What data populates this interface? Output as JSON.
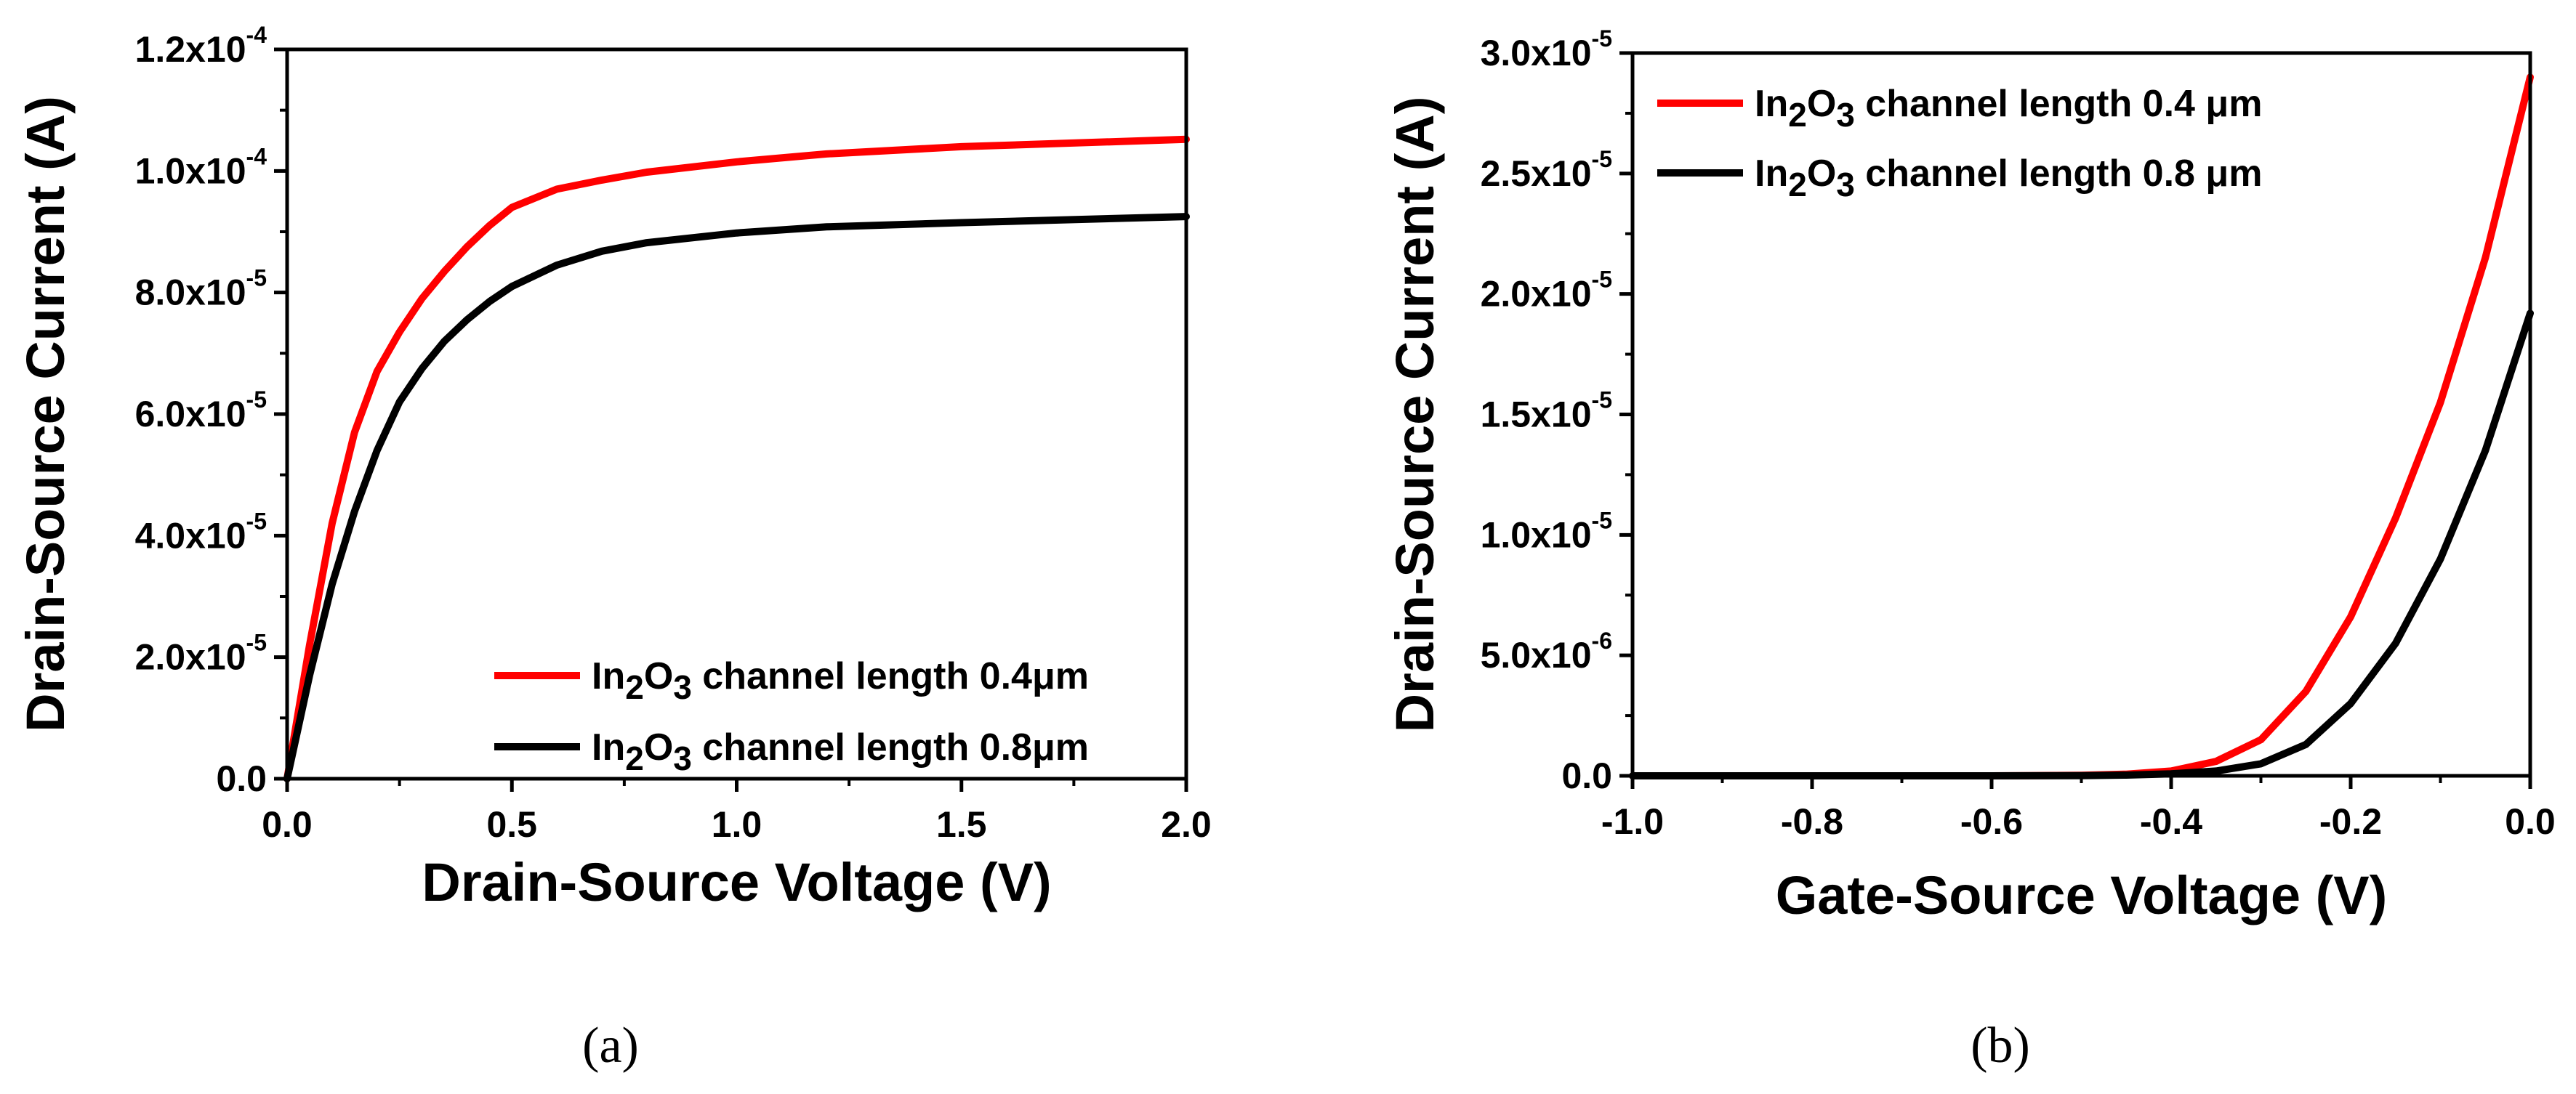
{
  "chart_data": [
    {
      "type": "line",
      "panel": "a",
      "panel_label": "(a)",
      "xlabel": "Drain-Source Voltage (V)",
      "ylabel": "Drain-Source Current (A)",
      "xlim": [
        0,
        2.0
      ],
      "ylim": [
        0,
        0.00012
      ],
      "x_ticks": [
        0.0,
        0.5,
        1.0,
        1.5,
        2.0
      ],
      "x_tick_labels": [
        "0.0",
        "0.5",
        "1.0",
        "1.5",
        "2.0"
      ],
      "y_ticks": [
        0,
        2e-05,
        4e-05,
        6e-05,
        8e-05,
        0.0001,
        0.00012
      ],
      "y_tick_labels": [
        {
          "mantissa": "0.0",
          "exponent": ""
        },
        {
          "mantissa": "2.0x10",
          "exponent": "-5"
        },
        {
          "mantissa": "4.0x10",
          "exponent": "-5"
        },
        {
          "mantissa": "6.0x10",
          "exponent": "-5"
        },
        {
          "mantissa": "8.0x10",
          "exponent": "-5"
        },
        {
          "mantissa": "1.0x10",
          "exponent": "-4"
        },
        {
          "mantissa": "1.2x10",
          "exponent": "-4"
        }
      ],
      "legend_position": "bottom-right",
      "series": [
        {
          "name": "In2O3 channel length 0.4μm",
          "legend": {
            "pre": "In",
            "sub1": "2",
            "mid": "O",
            "sub2": "3",
            "post": " channel length 0.4μm"
          },
          "color": "#ff0000",
          "x": [
            0,
            0.05,
            0.1,
            0.15,
            0.2,
            0.25,
            0.3,
            0.35,
            0.4,
            0.45,
            0.5,
            0.6,
            0.7,
            0.8,
            1.0,
            1.2,
            1.5,
            2.0
          ],
          "y": [
            0,
            2.2e-05,
            4.2e-05,
            5.7e-05,
            6.7e-05,
            7.35e-05,
            7.9e-05,
            8.35e-05,
            8.75e-05,
            9.1e-05,
            9.4e-05,
            9.7e-05,
            9.85e-05,
            9.98e-05,
            0.0001015,
            0.0001028,
            0.000104,
            0.0001052
          ]
        },
        {
          "name": "In2O3 channel length 0.8μm",
          "legend": {
            "pre": "In",
            "sub1": "2",
            "mid": "O",
            "sub2": "3",
            "post": " channel length 0.8μm"
          },
          "color": "#000000",
          "x": [
            0,
            0.05,
            0.1,
            0.15,
            0.2,
            0.25,
            0.3,
            0.35,
            0.4,
            0.45,
            0.5,
            0.6,
            0.7,
            0.8,
            1.0,
            1.2,
            1.5,
            2.0
          ],
          "y": [
            0,
            1.7e-05,
            3.2e-05,
            4.4e-05,
            5.4e-05,
            6.2e-05,
            6.75e-05,
            7.2e-05,
            7.55e-05,
            7.85e-05,
            8.1e-05,
            8.45e-05,
            8.68e-05,
            8.82e-05,
            8.98e-05,
            9.08e-05,
            9.15e-05,
            9.25e-05
          ]
        }
      ]
    },
    {
      "type": "line",
      "panel": "b",
      "panel_label": "(b)",
      "xlabel": "Gate-Source Voltage (V)",
      "ylabel": "Drain-Source Current (A)",
      "xlim": [
        -1.0,
        0.0
      ],
      "ylim": [
        0,
        3e-05
      ],
      "x_ticks": [
        -1.0,
        -0.8,
        -0.6,
        -0.4,
        -0.2,
        0.0
      ],
      "x_tick_labels": [
        "-1.0",
        "-0.8",
        "-0.6",
        "-0.4",
        "-0.2",
        "0.0"
      ],
      "y_ticks": [
        0,
        5e-06,
        1e-05,
        1.5e-05,
        2e-05,
        2.5e-05,
        3e-05
      ],
      "y_tick_labels": [
        {
          "mantissa": "0.0",
          "exponent": ""
        },
        {
          "mantissa": "5.0x10",
          "exponent": "-6"
        },
        {
          "mantissa": "1.0x10",
          "exponent": "-5"
        },
        {
          "mantissa": "1.5x10",
          "exponent": "-5"
        },
        {
          "mantissa": "2.0x10",
          "exponent": "-5"
        },
        {
          "mantissa": "2.5x10",
          "exponent": "-5"
        },
        {
          "mantissa": "3.0x10",
          "exponent": "-5"
        }
      ],
      "legend_position": "top-left",
      "series": [
        {
          "name": "In2O3 channel length 0.4 μm",
          "legend": {
            "pre": "In",
            "sub1": "2",
            "mid": "O",
            "sub2": "3",
            "post": " channel length 0.4 μm"
          },
          "color": "#ff0000",
          "x": [
            -1.0,
            -0.9,
            -0.8,
            -0.7,
            -0.6,
            -0.5,
            -0.45,
            -0.4,
            -0.35,
            -0.3,
            -0.25,
            -0.2,
            -0.15,
            -0.1,
            -0.05,
            0.0
          ],
          "y": [
            0,
            0,
            0,
            0,
            0,
            2e-08,
            7e-08,
            2e-07,
            6e-07,
            1.5e-06,
            3.5e-06,
            6.6e-06,
            1.07e-05,
            1.55e-05,
            2.15e-05,
            2.9e-05
          ]
        },
        {
          "name": "In2O3 channel length 0.8 μm",
          "legend": {
            "pre": "In",
            "sub1": "2",
            "mid": "O",
            "sub2": "3",
            "post": " channel length 0.8 μm"
          },
          "color": "#000000",
          "x": [
            -1.0,
            -0.9,
            -0.8,
            -0.7,
            -0.6,
            -0.5,
            -0.45,
            -0.4,
            -0.35,
            -0.3,
            -0.25,
            -0.2,
            -0.15,
            -0.1,
            -0.05,
            0.0
          ],
          "y": [
            0,
            0,
            0,
            0,
            0,
            1e-08,
            3e-08,
            8e-08,
            2e-07,
            5e-07,
            1.3e-06,
            3e-06,
            5.5e-06,
            9e-06,
            1.35e-05,
            1.92e-05
          ]
        }
      ]
    }
  ]
}
